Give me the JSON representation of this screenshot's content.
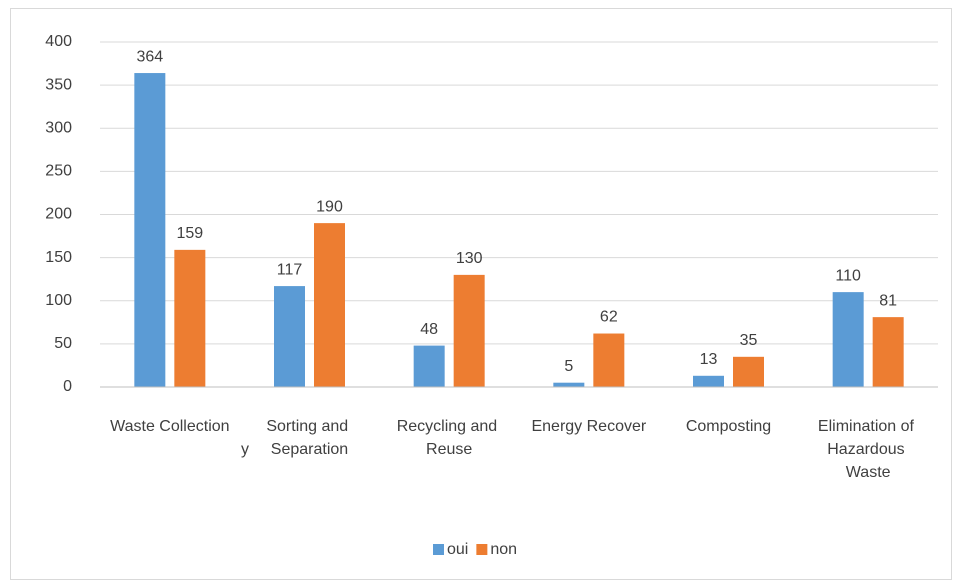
{
  "chart_data": {
    "type": "bar",
    "categories": [
      "Waste Collection",
      "Sorting and Separation",
      "Recycling and Reuse",
      "Energy Recover",
      "Composting",
      "Elimination of Hazardous Waste"
    ],
    "series": [
      {
        "name": "oui",
        "color": "#5b9bd5",
        "values": [
          364,
          117,
          48,
          5,
          13,
          110
        ]
      },
      {
        "name": "non",
        "color": "#ed7d31",
        "values": [
          159,
          190,
          130,
          62,
          35,
          81
        ]
      }
    ],
    "annotations": [
      "y"
    ],
    "ylim": [
      0,
      400
    ],
    "yticks": [
      0,
      50,
      100,
      150,
      200,
      250,
      300,
      350,
      400
    ],
    "grid": true,
    "legend": "bottom"
  }
}
